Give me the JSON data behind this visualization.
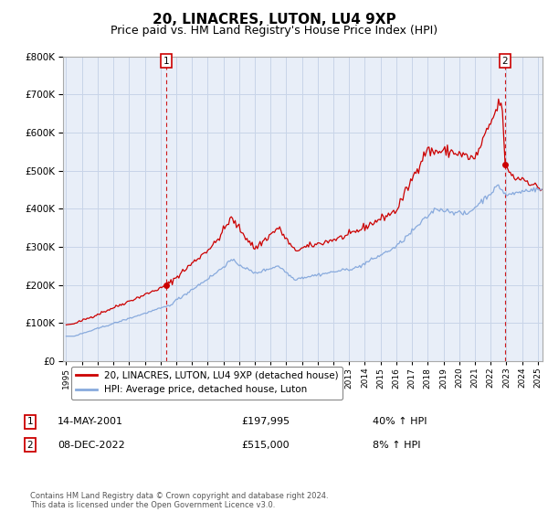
{
  "title": "20, LINACRES, LUTON, LU4 9XP",
  "subtitle": "Price paid vs. HM Land Registry's House Price Index (HPI)",
  "title_fontsize": 11,
  "subtitle_fontsize": 9,
  "legend_label_hpi": "20, LINACRES, LUTON, LU4 9XP (detached house)",
  "legend_label_avg": "HPI: Average price, detached house, Luton",
  "sale1_label": "1",
  "sale1_date": "14-MAY-2001",
  "sale1_price": "£197,995",
  "sale1_pct": "40% ↑ HPI",
  "sale2_label": "2",
  "sale2_date": "08-DEC-2022",
  "sale2_price": "£515,000",
  "sale2_pct": "8% ↑ HPI",
  "footer": "Contains HM Land Registry data © Crown copyright and database right 2024.\nThis data is licensed under the Open Government Licence v3.0.",
  "hpi_color": "#cc0000",
  "avg_color": "#88aadd",
  "dashed_color": "#cc0000",
  "bg_plot": "#e8eef8",
  "bg_fig": "#ffffff",
  "grid_color": "#c8d4e8",
  "ylim": [
    0,
    800000
  ],
  "yticks": [
    0,
    100000,
    200000,
    300000,
    400000,
    500000,
    600000,
    700000,
    800000
  ],
  "sale1_x": 2001.37,
  "sale1_y": 197995,
  "sale2_x": 2022.92,
  "sale2_y": 515000,
  "vline1_x": 2001.37,
  "vline2_x": 2022.92,
  "xmin": 1994.8,
  "xmax": 2025.3
}
